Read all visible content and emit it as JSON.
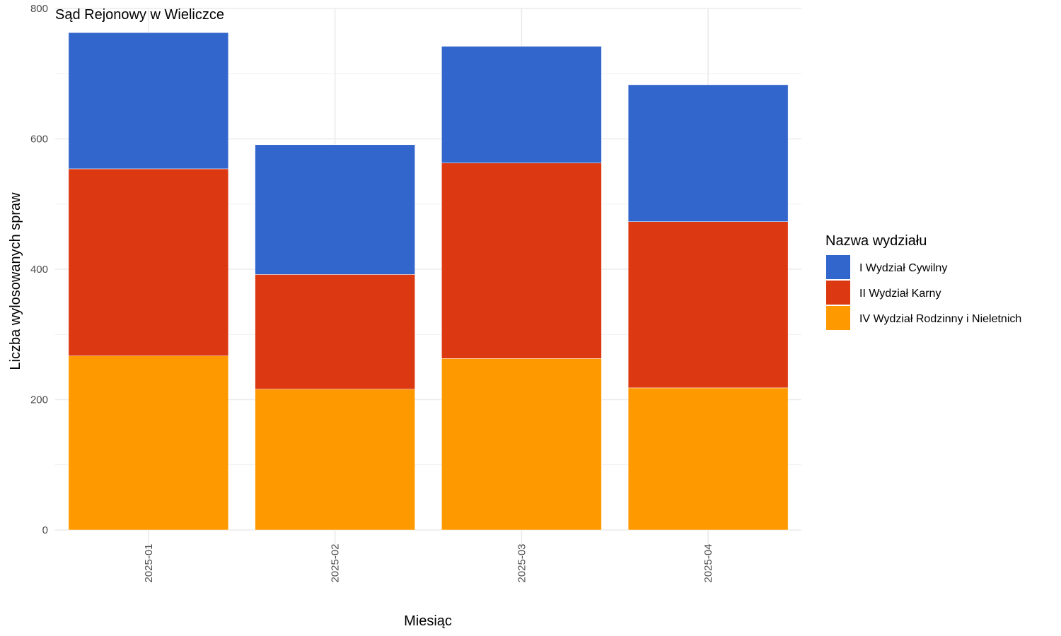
{
  "chart_data": {
    "type": "bar",
    "stacked": true,
    "title": "Sąd Rejonowy w Wieliczce",
    "xlabel": "Miesiąc",
    "ylabel": "Liczba wylosowanych spraw",
    "ylim": [
      0,
      800
    ],
    "yticks": [
      "0",
      "200",
      "400",
      "600",
      "800"
    ],
    "grid": true,
    "legend_title": "Nazwa wydziału",
    "legend_position": "right",
    "categories": [
      "2025-01",
      "2025-02",
      "2025-03",
      "2025-04"
    ],
    "series": [
      {
        "name": "IV Wydział Rodzinny i Nieletnich",
        "color": "#FF9900",
        "values": [
          267,
          216,
          263,
          218
        ]
      },
      {
        "name": "II Wydział Karny",
        "color": "#DC3912",
        "values": [
          287,
          176,
          300,
          255
        ]
      },
      {
        "name": "I Wydział Cywilny",
        "color": "#3366CC",
        "values": [
          209,
          199,
          179,
          210
        ]
      }
    ],
    "legend_order": [
      "I Wydział Cywilny",
      "II Wydział Karny",
      "IV Wydział Rodzinny i Nieletnich"
    ]
  }
}
